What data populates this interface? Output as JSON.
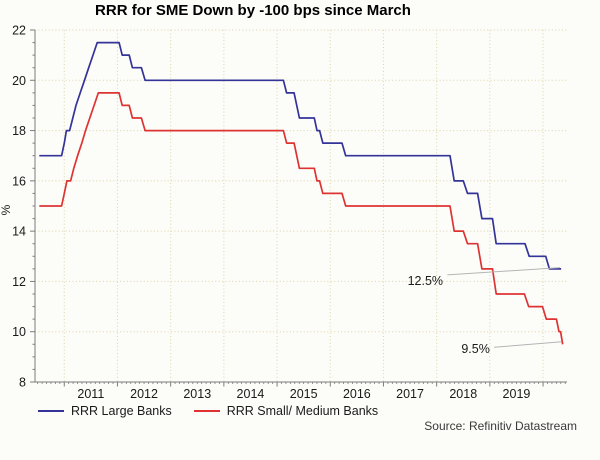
{
  "title": "RRR for SME Down by -100 bps since March",
  "source": "Source: Refinitiv Datastream",
  "colors": {
    "large_banks": "#333399",
    "small_medium_banks": "#dd3333",
    "grid": "#ddd5a8",
    "axis": "#7d7d7d",
    "tick_text": "#1a1a1a",
    "annotation_text": "#1a1a1a",
    "annotation_leader": "#b5b5b5",
    "background": "#fcfcf9"
  },
  "legend": [
    {
      "label": "RRR Large Banks",
      "color": "#333399"
    },
    {
      "label": "RRR Small/ Medium Banks",
      "color": "#dd3333"
    }
  ],
  "chart_data": {
    "type": "line",
    "title": "RRR for SME Down by -100 bps since March",
    "xlabel": "",
    "ylabel": "%",
    "ylim": [
      8,
      22
    ],
    "y_ticks": [
      8,
      10,
      12,
      14,
      16,
      18,
      20,
      22
    ],
    "y_gridlines": [
      10,
      12,
      14,
      16,
      18,
      20,
      22
    ],
    "x_range": [
      2010.45,
      2020.45
    ],
    "x_year_gridlines": [
      2011,
      2012,
      2013,
      2014,
      2015,
      2016,
      2017,
      2018,
      2019,
      2020
    ],
    "x_year_labels": [
      2011,
      2012,
      2013,
      2014,
      2015,
      2016,
      2017,
      2018,
      2019
    ],
    "grid": "dotted",
    "legend_position": "bottom-left",
    "series": [
      {
        "name": "RRR Large Banks",
        "color": "#333399",
        "points": [
          [
            2010.53,
            17
          ],
          [
            2010.95,
            17
          ],
          [
            2011.0,
            17.5
          ],
          [
            2011.04,
            18
          ],
          [
            2011.1,
            18
          ],
          [
            2011.16,
            18.5
          ],
          [
            2011.22,
            19
          ],
          [
            2011.3,
            19.5
          ],
          [
            2011.38,
            20
          ],
          [
            2011.46,
            20.5
          ],
          [
            2011.54,
            21
          ],
          [
            2011.62,
            21.5
          ],
          [
            2012.03,
            21.5
          ],
          [
            2012.09,
            21
          ],
          [
            2012.22,
            21
          ],
          [
            2012.28,
            20.5
          ],
          [
            2012.45,
            20.5
          ],
          [
            2012.52,
            20
          ],
          [
            2015.12,
            20
          ],
          [
            2015.18,
            19.5
          ],
          [
            2015.32,
            19.5
          ],
          [
            2015.42,
            18.5
          ],
          [
            2015.7,
            18.5
          ],
          [
            2015.75,
            18
          ],
          [
            2015.8,
            18
          ],
          [
            2015.86,
            17.5
          ],
          [
            2016.22,
            17.5
          ],
          [
            2016.29,
            17
          ],
          [
            2018.25,
            17
          ],
          [
            2018.33,
            16
          ],
          [
            2018.5,
            16
          ],
          [
            2018.58,
            15.5
          ],
          [
            2018.77,
            15.5
          ],
          [
            2018.85,
            14.5
          ],
          [
            2019.05,
            14.5
          ],
          [
            2019.12,
            13.5
          ],
          [
            2019.66,
            13.5
          ],
          [
            2019.74,
            13
          ],
          [
            2020.05,
            13
          ],
          [
            2020.12,
            12.5
          ],
          [
            2020.34,
            12.5
          ]
        ]
      },
      {
        "name": "RRR Small/ Medium Banks",
        "color": "#dd3333",
        "points": [
          [
            2010.53,
            15
          ],
          [
            2010.95,
            15
          ],
          [
            2011.0,
            15.5
          ],
          [
            2011.05,
            16
          ],
          [
            2011.12,
            16
          ],
          [
            2011.18,
            16.5
          ],
          [
            2011.25,
            17
          ],
          [
            2011.33,
            17.5
          ],
          [
            2011.4,
            18
          ],
          [
            2011.48,
            18.5
          ],
          [
            2011.56,
            19
          ],
          [
            2011.64,
            19.5
          ],
          [
            2012.03,
            19.5
          ],
          [
            2012.09,
            19
          ],
          [
            2012.22,
            19
          ],
          [
            2012.28,
            18.5
          ],
          [
            2012.45,
            18.5
          ],
          [
            2012.52,
            18
          ],
          [
            2015.12,
            18
          ],
          [
            2015.18,
            17.5
          ],
          [
            2015.32,
            17.5
          ],
          [
            2015.42,
            16.5
          ],
          [
            2015.7,
            16.5
          ],
          [
            2015.75,
            16
          ],
          [
            2015.8,
            16
          ],
          [
            2015.86,
            15.5
          ],
          [
            2016.22,
            15.5
          ],
          [
            2016.29,
            15
          ],
          [
            2018.25,
            15
          ],
          [
            2018.33,
            14
          ],
          [
            2018.5,
            14
          ],
          [
            2018.58,
            13.5
          ],
          [
            2018.77,
            13.5
          ],
          [
            2018.85,
            12.5
          ],
          [
            2019.05,
            12.5
          ],
          [
            2019.12,
            11.5
          ],
          [
            2019.65,
            11.5
          ],
          [
            2019.73,
            11
          ],
          [
            2019.99,
            11
          ],
          [
            2020.06,
            10.5
          ],
          [
            2020.25,
            10.5
          ],
          [
            2020.3,
            10
          ],
          [
            2020.33,
            10
          ],
          [
            2020.37,
            9.5
          ]
        ]
      }
    ],
    "annotations": [
      {
        "text": "12.5%",
        "anchor": [
          2018.12,
          11.85
        ],
        "leader": [
          [
            2018.2,
            12.26
          ],
          [
            2020.32,
            12.55
          ]
        ]
      },
      {
        "text": "9.5%",
        "anchor": [
          2019.0,
          9.15
        ],
        "leader": [
          [
            2019.08,
            9.38
          ],
          [
            2020.35,
            9.6
          ]
        ]
      }
    ]
  }
}
